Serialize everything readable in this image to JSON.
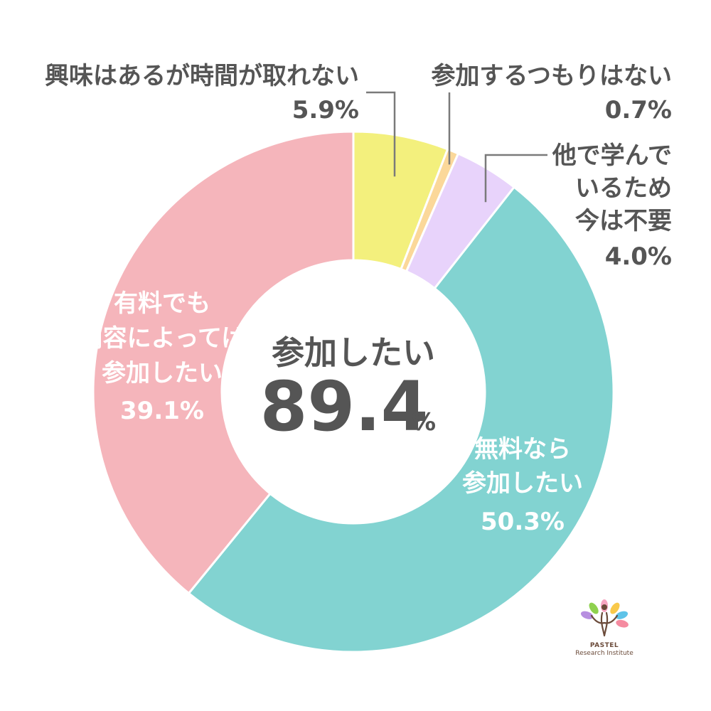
{
  "chart_data": {
    "type": "pie",
    "donut": true,
    "slices": [
      {
        "label": "興味はあるが時間が取れない",
        "value": 5.9,
        "value_label": "5.9%",
        "color": "#f3f07d"
      },
      {
        "label": "参加するつもりはない",
        "value": 0.7,
        "value_label": "0.7%",
        "color": "#fbd89a"
      },
      {
        "label": "他で学んでいるため今は不要",
        "label_lines": [
          "他で学んで",
          "いるため",
          "今は不要"
        ],
        "value": 4.0,
        "value_label": "4.0%",
        "color": "#e8d3fb"
      },
      {
        "label": "無料なら参加したい",
        "label_lines": [
          "無料なら",
          "参加したい"
        ],
        "value": 50.3,
        "value_label": "50.3%",
        "color": "#82d3d1"
      },
      {
        "label": "有料でも内容によっては参加したい",
        "label_lines": [
          "有料でも",
          "内容によっては",
          "参加したい"
        ],
        "value": 39.1,
        "value_label": "39.1%",
        "color": "#f5b5bb"
      }
    ],
    "center": {
      "title": "参加したい",
      "value": "89.4",
      "unit": "%"
    }
  },
  "logo": {
    "name": "PASTEL",
    "subtitle": "Research Institute",
    "petal_colors": [
      "#f7a5c0",
      "#f9c94a",
      "#8fd14f",
      "#5ec3e8",
      "#b78ee0",
      "#f58ba0"
    ]
  }
}
